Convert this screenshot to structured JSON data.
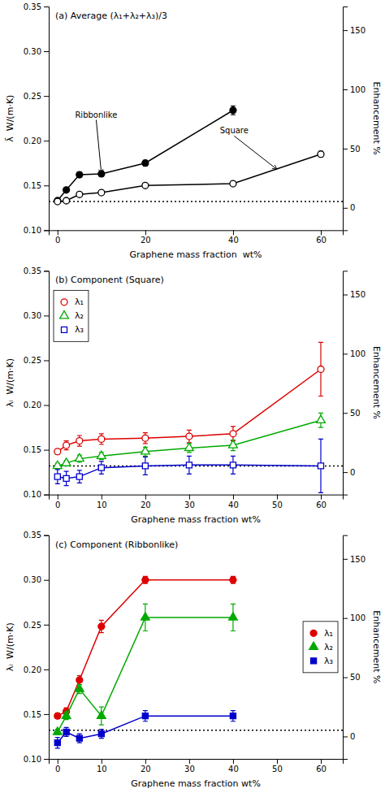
{
  "chart_data": [
    {
      "type": "line",
      "title": "(a) Average (λ₁+λ₂+λ₃)/3",
      "xlabel": "Graphene mass fraction  wt%",
      "ylabel": "λ̄  W/(m·K)",
      "y2label": "Enhancement %",
      "xlim": [
        -2,
        65
      ],
      "ylim": [
        0.1,
        0.35
      ],
      "y2lim": [
        -18.9,
        170
      ],
      "xticks": [
        0,
        20,
        40,
        60
      ],
      "yticks": [
        {
          "value": 0.1,
          "label": "0.10"
        },
        0.15,
        {
          "value": 0.2,
          "label": "0.20"
        },
        0.25,
        {
          "value": 0.3,
          "label": "0.30"
        },
        0.35
      ],
      "y2ticks": [
        0,
        50,
        100,
        150
      ],
      "baseline": 0.132,
      "series": [
        {
          "color": "#000000",
          "marker": "circle",
          "line_style": "solid",
          "x": [
            0,
            2,
            5,
            10,
            20,
            40
          ],
          "values": [
            0.133,
            0.145,
            0.162,
            0.163,
            0.175,
            0.234
          ],
          "errors": [
            0.002,
            0.002,
            0.003,
            0.003,
            0.003,
            0.005
          ]
        },
        {
          "color": "#000000",
          "marker": "circle-open",
          "line_style": "solid",
          "x": [
            0,
            2,
            5,
            10,
            20,
            40,
            60
          ],
          "values": [
            0.132,
            0.133,
            0.14,
            0.142,
            0.15,
            0.152,
            0.185
          ],
          "errors": [
            0.002,
            0.002,
            0.002,
            0.002,
            0.002,
            0.002,
            0.003
          ]
        }
      ],
      "annotations": [
        {
          "text": "Ribbonlike",
          "xy": [
            10,
            0.163
          ],
          "xytext": [
            4,
            0.226
          ]
        },
        {
          "text": "Square",
          "xy": [
            50,
            0.168
          ],
          "xytext": [
            37,
            0.208
          ]
        }
      ]
    },
    {
      "type": "line",
      "title": "(b) Component (Square)",
      "xlabel": "Graphene mass fraction wt%",
      "ylabel": "λᵢ  W/(m·K)",
      "y2label": "Enhancement %",
      "xlim": [
        -2,
        65
      ],
      "ylim": [
        0.1,
        0.35
      ],
      "y2lim": [
        -18.9,
        170
      ],
      "xticks": [
        0,
        10,
        20,
        30,
        40,
        50,
        60
      ],
      "yticks": [
        {
          "value": 0.1,
          "label": "0.10"
        },
        0.15,
        {
          "value": 0.2,
          "label": "0.20"
        },
        0.25,
        {
          "value": 0.3,
          "label": "0.30"
        },
        0.35
      ],
      "y2ticks": [
        0,
        50,
        100,
        150
      ],
      "baseline": 0.132,
      "legend": "upper left",
      "x": [
        0,
        2,
        5,
        10,
        20,
        30,
        40,
        60
      ],
      "series": [
        {
          "name": "λ₁",
          "color": "#dd0000",
          "marker": "circle-open",
          "line_style": "solid",
          "values": [
            0.148,
            0.155,
            0.16,
            0.162,
            0.163,
            0.165,
            0.168,
            0.24
          ],
          "errors": [
            0.003,
            0.005,
            0.006,
            0.006,
            0.006,
            0.007,
            0.008,
            0.03
          ]
        },
        {
          "name": "λ₂",
          "color": "#00aa00",
          "marker": "triangle-open",
          "line_style": "solid",
          "values": [
            0.132,
            0.135,
            0.14,
            0.143,
            0.148,
            0.152,
            0.155,
            0.183
          ],
          "errors": [
            0.003,
            0.003,
            0.004,
            0.004,
            0.005,
            0.005,
            0.006,
            0.008
          ]
        },
        {
          "name": "λ₃",
          "color": "#0000cc",
          "marker": "square-open",
          "line_style": "solid",
          "values": [
            0.12,
            0.118,
            0.12,
            0.13,
            0.132,
            0.133,
            0.133,
            0.132
          ],
          "errors": [
            0.008,
            0.008,
            0.007,
            0.007,
            0.01,
            0.01,
            0.01,
            0.03
          ]
        }
      ]
    },
    {
      "type": "line",
      "title": "(c) Component (Ribbonlike)",
      "xlabel": "Graphene mass fraction wt%",
      "ylabel": "λᵢ  W/(m·K)",
      "y2label": "Enhancement %",
      "xlim": [
        -2,
        65
      ],
      "ylim": [
        0.1,
        0.35
      ],
      "y2lim": [
        -18.9,
        170
      ],
      "xticks": [
        0,
        10,
        20,
        30,
        40,
        50,
        60
      ],
      "yticks": [
        {
          "value": 0.1,
          "label": "0.10"
        },
        0.15,
        {
          "value": 0.2,
          "label": "0.20"
        },
        0.25,
        {
          "value": 0.3,
          "label": "0.30"
        },
        0.35
      ],
      "y2ticks": [
        0,
        50,
        100,
        150
      ],
      "baseline": 0.132,
      "legend": "center right",
      "x": [
        0,
        2,
        5,
        10,
        20,
        40
      ],
      "series": [
        {
          "name": "λ₁",
          "color": "#dd0000",
          "marker": "circle",
          "line_style": "solid",
          "values": [
            0.148,
            0.153,
            0.188,
            0.248,
            0.3,
            0.3
          ],
          "errors": [
            0.003,
            0.004,
            0.005,
            0.007,
            0.004,
            0.004
          ]
        },
        {
          "name": "λ₂",
          "color": "#00aa00",
          "marker": "triangle",
          "line_style": "solid",
          "values": [
            0.13,
            0.148,
            0.178,
            0.148,
            0.258,
            0.258
          ],
          "errors": [
            0.003,
            0.004,
            0.005,
            0.01,
            0.015,
            0.015
          ]
        },
        {
          "name": "λ₃",
          "color": "#0000cc",
          "marker": "square",
          "line_style": "solid",
          "values": [
            0.118,
            0.13,
            0.123,
            0.128,
            0.148,
            0.148
          ],
          "errors": [
            0.006,
            0.005,
            0.005,
            0.005,
            0.006,
            0.006
          ]
        }
      ]
    }
  ]
}
